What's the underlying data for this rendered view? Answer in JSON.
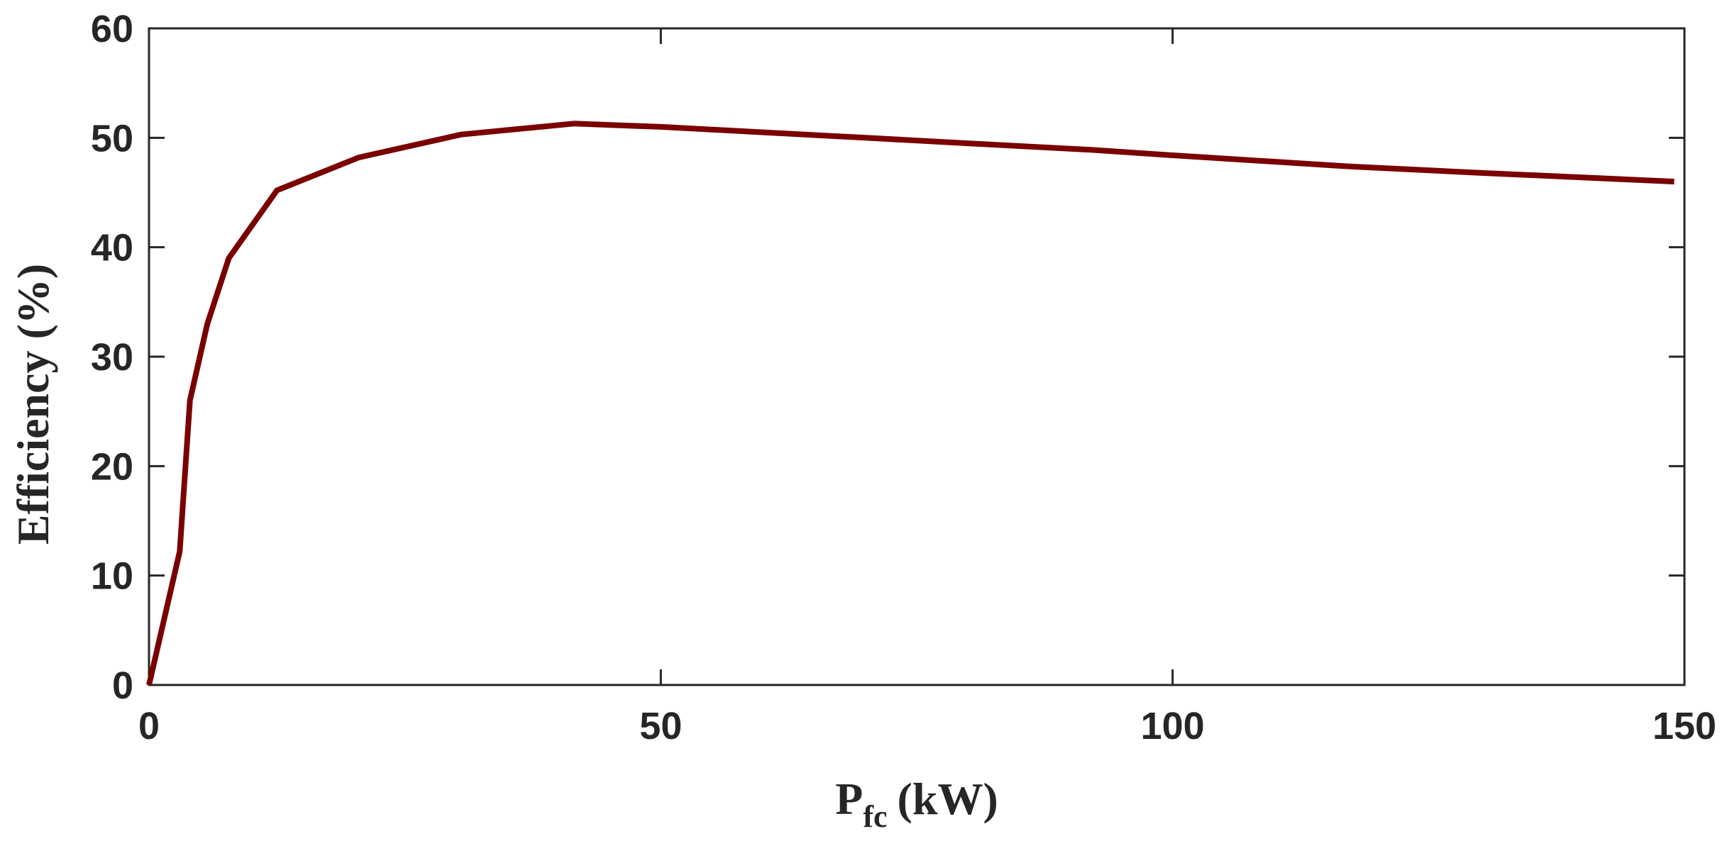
{
  "chart_data": {
    "type": "line",
    "title": "",
    "xlabel_main": "P",
    "xlabel_sub": "fc",
    "xlabel_unit": "(kW)",
    "ylabel": "Efficiency (%)",
    "xlim": [
      0,
      150
    ],
    "ylim": [
      0,
      60
    ],
    "xticks": [
      0,
      50,
      100,
      150
    ],
    "xtick_labels": [
      "0",
      "50",
      "100",
      "150"
    ],
    "yticks": [
      0,
      10,
      20,
      30,
      40,
      50,
      60
    ],
    "ytick_labels": [
      "0",
      "10",
      "20",
      "30",
      "40",
      "50",
      "60"
    ],
    "grid": false,
    "series": [
      {
        "color": "#7a0000",
        "x": [
          0,
          3,
          4,
          5.7,
          7.8,
          12.5,
          20.5,
          30.5,
          41.5,
          50,
          60,
          70,
          80,
          92,
          100,
          117,
          130,
          149
        ],
        "y": [
          0,
          12.2,
          26,
          33,
          39,
          45.2,
          48.2,
          50.3,
          51.3,
          51.0,
          50.5,
          50.0,
          49.5,
          48.9,
          48.4,
          47.4,
          46.8,
          46.0
        ]
      }
    ]
  }
}
